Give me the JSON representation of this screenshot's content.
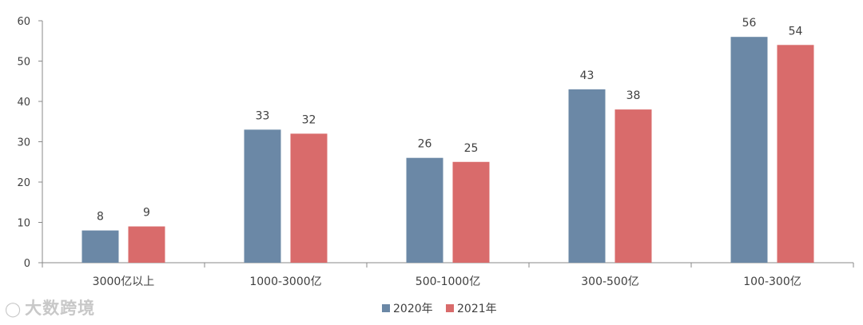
{
  "chart_data": {
    "type": "bar",
    "categories": [
      "3000亿以上",
      "1000-3000亿",
      "500-1000亿",
      "300-500亿",
      "100-300亿"
    ],
    "series": [
      {
        "name": "2020年",
        "values": [
          8,
          33,
          26,
          43,
          56
        ]
      },
      {
        "name": "2021年",
        "values": [
          9,
          32,
          25,
          38,
          54
        ]
      }
    ],
    "ylim": [
      0,
      60
    ],
    "yticks": [
      0,
      10,
      20,
      30,
      40,
      50,
      60
    ],
    "colors": [
      "#6b88a6",
      "#d96b6b"
    ],
    "grid": false,
    "legend": "bottom-center"
  },
  "watermark": {
    "text": "大数跨境",
    "icon": "logo-icon"
  }
}
